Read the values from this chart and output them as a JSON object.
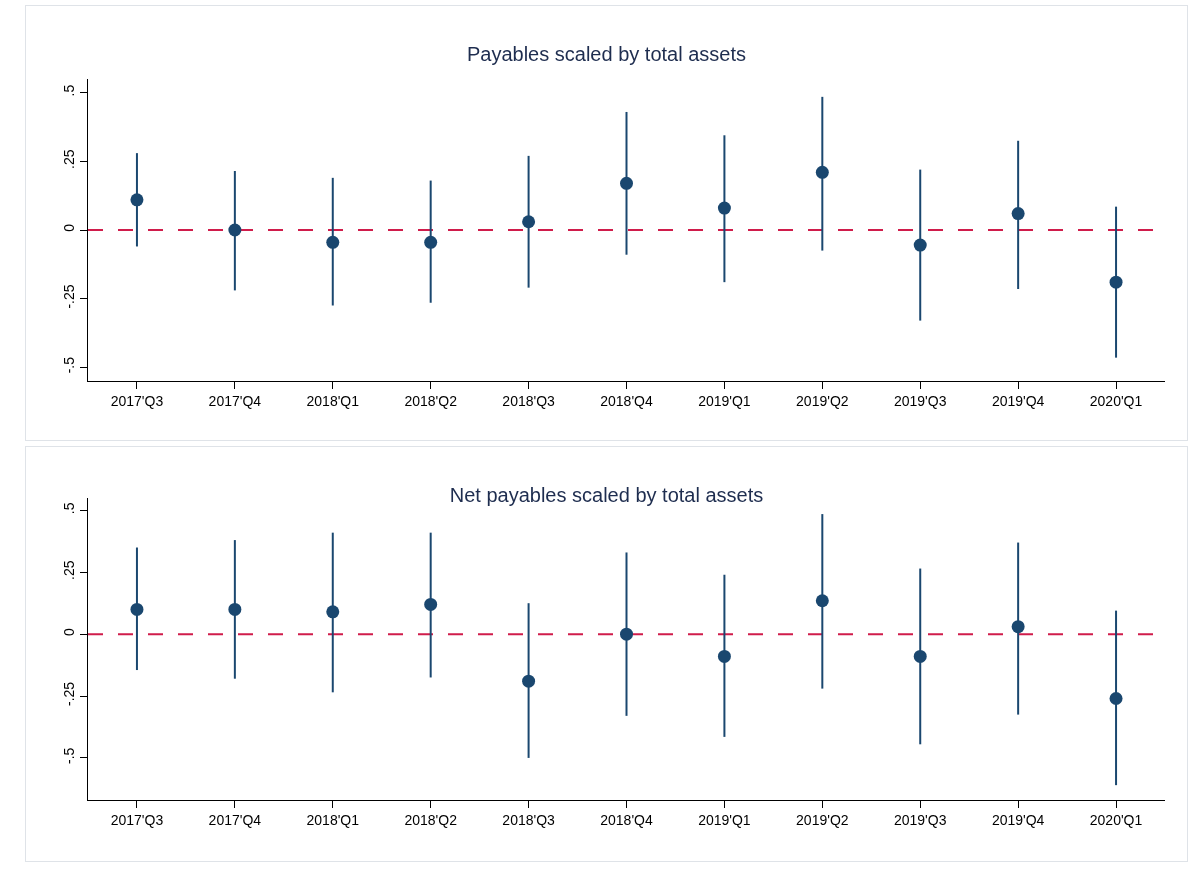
{
  "chart_data": [
    {
      "type": "scatter",
      "title": "Payables scaled by total assets",
      "categories": [
        "2017'Q3",
        "2017'Q4",
        "2018'Q1",
        "2018'Q2",
        "2018'Q3",
        "2018'Q4",
        "2019'Q1",
        "2019'Q2",
        "2019'Q3",
        "2019'Q4",
        "2020'Q1"
      ],
      "series": [
        {
          "color": "#1a476f",
          "values": [
            0.11,
            0,
            -0.045,
            -0.045,
            0.03,
            0.17,
            0.08,
            0.21,
            -0.055,
            0.06,
            -0.19
          ],
          "errors": [
            [
              -0.06,
              0.28
            ],
            [
              -0.22,
              0.215
            ],
            [
              -0.275,
              0.19
            ],
            [
              -0.265,
              0.18
            ],
            [
              -0.21,
              0.27
            ],
            [
              -0.09,
              0.43
            ],
            [
              -0.19,
              0.345
            ],
            [
              -0.075,
              0.485
            ],
            [
              -0.33,
              0.22
            ],
            [
              -0.215,
              0.325
            ],
            [
              -0.465,
              0.085
            ]
          ]
        }
      ],
      "marker": "circle",
      "ylim": [
        -0.55,
        0.55
      ],
      "yticks": [
        {
          "value": -0.5,
          "label": "-.5"
        },
        {
          "value": -0.25,
          "label": "-.25"
        },
        0,
        {
          "value": 0.25,
          "label": ".25"
        },
        {
          "value": 0.5,
          "label": ".5"
        }
      ],
      "ref_lines": [
        {
          "axis": "y",
          "value": 0,
          "color": "#d01c4b",
          "line_style": "dashed"
        }
      ]
    },
    {
      "type": "scatter",
      "title": "Net payables scaled by total assets",
      "categories": [
        "2017'Q3",
        "2017'Q4",
        "2018'Q1",
        "2018'Q2",
        "2018'Q3",
        "2018'Q4",
        "2019'Q1",
        "2019'Q2",
        "2019'Q3",
        "2019'Q4",
        "2020'Q1"
      ],
      "series": [
        {
          "color": "#1a476f",
          "values": [
            0.1,
            0.1,
            0.09,
            0.12,
            -0.19,
            0,
            -0.09,
            0.135,
            -0.09,
            0.03,
            -0.26
          ],
          "errors": [
            [
              -0.145,
              0.35
            ],
            [
              -0.18,
              0.38
            ],
            [
              -0.235,
              0.41
            ],
            [
              -0.175,
              0.41
            ],
            [
              -0.5,
              0.125
            ],
            [
              -0.33,
              0.33
            ],
            [
              -0.415,
              0.24
            ],
            [
              -0.22,
              0.485
            ],
            [
              -0.445,
              0.265
            ],
            [
              -0.325,
              0.37
            ],
            [
              -0.61,
              0.095
            ]
          ]
        }
      ],
      "marker": "circle",
      "ylim": [
        -0.67,
        0.55
      ],
      "yticks": [
        {
          "value": -0.5,
          "label": "-.5"
        },
        {
          "value": -0.25,
          "label": "-.25"
        },
        0,
        {
          "value": 0.25,
          "label": ".25"
        },
        {
          "value": 0.5,
          "label": ".5"
        }
      ],
      "ref_lines": [
        {
          "axis": "y",
          "value": 0,
          "color": "#d01c4b",
          "line_style": "dashed"
        }
      ]
    }
  ]
}
